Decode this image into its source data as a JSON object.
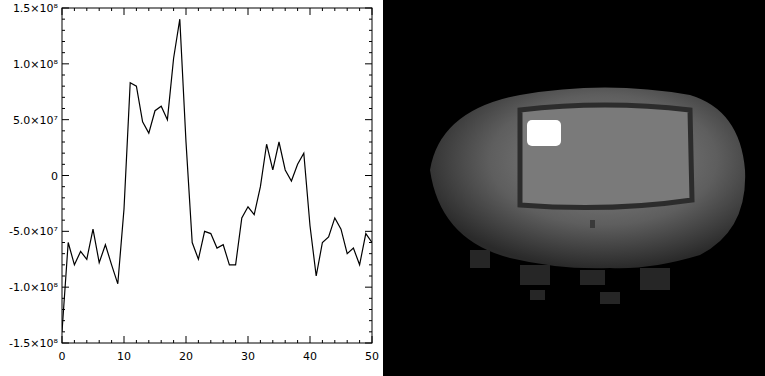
{
  "chart_data": {
    "type": "line",
    "x": [
      0,
      1,
      2,
      3,
      4,
      5,
      6,
      7,
      8,
      9,
      10,
      11,
      12,
      13,
      14,
      15,
      16,
      17,
      18,
      19,
      20,
      21,
      22,
      23,
      24,
      25,
      26,
      27,
      28,
      29,
      30,
      31,
      32,
      33,
      34,
      35,
      36,
      37,
      38,
      39,
      40,
      41,
      42,
      43,
      44,
      45,
      46,
      47,
      48,
      49,
      50
    ],
    "values": [
      -140000000,
      -60000000,
      -80000000,
      -68000000,
      -75000000,
      -48000000,
      -78000000,
      -62000000,
      -80000000,
      -97000000,
      -30000000,
      83000000,
      80000000,
      48000000,
      38000000,
      58000000,
      62000000,
      50000000,
      105000000,
      140000000,
      30000000,
      -60000000,
      -75000000,
      -50000000,
      -52000000,
      -65000000,
      -62000000,
      -80000000,
      -80000000,
      -38000000,
      -28000000,
      -35000000,
      -10000000,
      28000000,
      5000000,
      30000000,
      5000000,
      -5000000,
      10000000,
      20000000,
      -45000000,
      -90000000,
      -60000000,
      -55000000,
      -38000000,
      -48000000,
      -70000000,
      -65000000,
      -80000000,
      -52000000,
      -60000000
    ],
    "color": "#000000",
    "xlim": [
      0,
      50
    ],
    "ylim": [
      -150000000,
      150000000
    ],
    "xticks": [
      0,
      10,
      20,
      30,
      40,
      50
    ],
    "yticks": [
      {
        "value": -150000000,
        "label": "-1.5×10⁸"
      },
      {
        "value": -100000000,
        "label": "-1.0×10⁸"
      },
      {
        "value": -50000000,
        "label": "-5.0×10⁷"
      },
      0,
      {
        "value": 50000000,
        "label": "5.0×10⁷"
      },
      {
        "value": 100000000,
        "label": "1.0×10⁸"
      },
      {
        "value": 150000000,
        "label": "1.5×10⁸"
      }
    ]
  }
}
